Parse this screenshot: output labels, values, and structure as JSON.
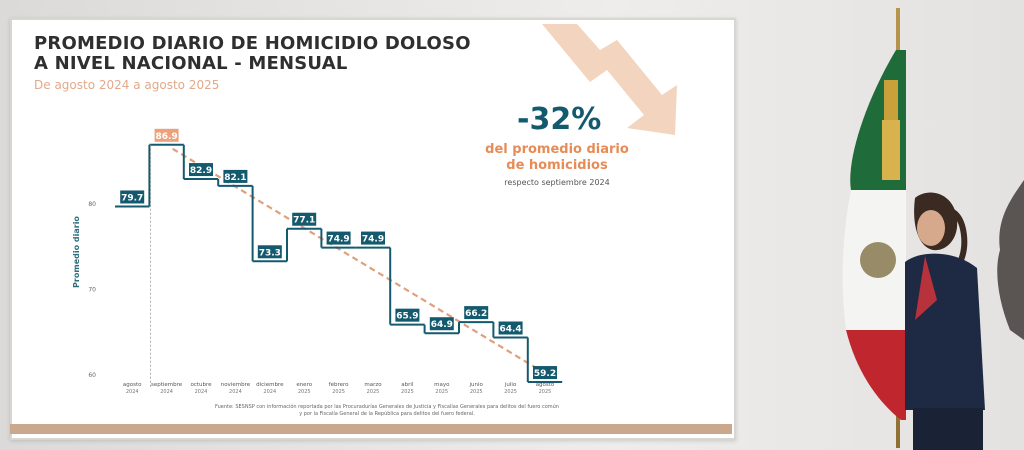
{
  "title_line1": "PROMEDIO DIARIO DE HOMICIDIO DOLOSO",
  "title_line2": "A NIVEL NACIONAL - MENSUAL",
  "subtitle": "De agosto 2024 a agosto 2025",
  "highlight": {
    "percent": "-32%",
    "desc_line1": "del promedio diario",
    "desc_line2": "de homicidios",
    "note": "respecto septiembre 2024"
  },
  "source_line1": "Fuente: SESNSP con información reportada por las Procuradurías Generales de Justicia y Fiscalías Generales para delitos del fuero común",
  "source_line2": "y por la Fiscalía General de la República para delitos del fuero federal.",
  "colors": {
    "label_bg": "#145a6e",
    "highlight_bg": "#eba27c",
    "trend": "#e0a07c",
    "line": "#145a6e"
  },
  "chart_data": {
    "type": "line",
    "step": true,
    "title": "PROMEDIO DIARIO DE HOMICIDIO DOLOSO A NIVEL NACIONAL - MENSUAL",
    "subtitle": "De agosto 2024 a agosto 2025",
    "ylabel": "Promedio diario",
    "xlabel": "",
    "ylim": [
      58,
      90
    ],
    "yticks": [
      80,
      70,
      60
    ],
    "grid": false,
    "categories": [
      [
        "agosto",
        "2024"
      ],
      [
        "septiembre",
        "2024"
      ],
      [
        "octubre",
        "2024"
      ],
      [
        "noviembre",
        "2024"
      ],
      [
        "diciembre",
        "2024"
      ],
      [
        "enero",
        "2025"
      ],
      [
        "febrero",
        "2025"
      ],
      [
        "marzo",
        "2025"
      ],
      [
        "abril",
        "2025"
      ],
      [
        "mayo",
        "2025"
      ],
      [
        "junio",
        "2025"
      ],
      [
        "julio",
        "2025"
      ],
      [
        "agosto",
        "2025"
      ]
    ],
    "values": [
      79.7,
      86.9,
      82.9,
      82.1,
      73.3,
      77.1,
      74.9,
      74.9,
      65.9,
      64.9,
      66.2,
      64.4,
      59.2
    ],
    "highlight_index": 1,
    "trend": {
      "from_index": 1,
      "to_index": 12
    }
  }
}
